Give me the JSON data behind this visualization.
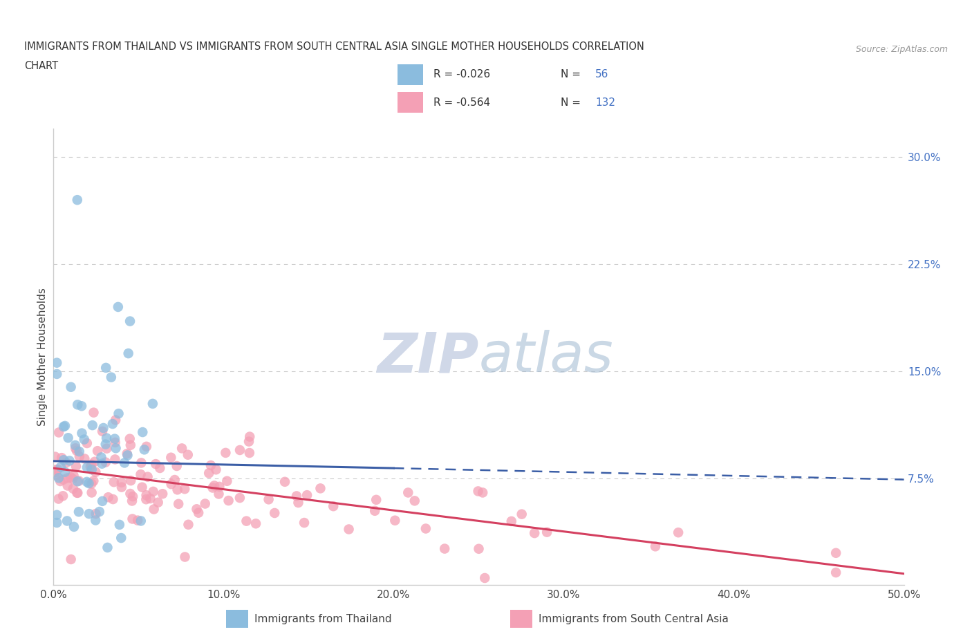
{
  "title_line1": "IMMIGRANTS FROM THAILAND VS IMMIGRANTS FROM SOUTH CENTRAL ASIA SINGLE MOTHER HOUSEHOLDS CORRELATION",
  "title_line2": "CHART",
  "source_text": "Source: ZipAtlas.com",
  "ylabel": "Single Mother Households",
  "xlim": [
    0.0,
    0.5
  ],
  "ylim": [
    0.0,
    0.32
  ],
  "xtick_vals": [
    0.0,
    0.1,
    0.2,
    0.3,
    0.4,
    0.5
  ],
  "xtick_labels": [
    "0.0%",
    "10.0%",
    "20.0%",
    "30.0%",
    "40.0%",
    "50.0%"
  ],
  "yticks_right": [
    0.075,
    0.15,
    0.225,
    0.3
  ],
  "ytick_labels_right": [
    "7.5%",
    "15.0%",
    "22.5%",
    "30.0%"
  ],
  "hlines": [
    0.075,
    0.15,
    0.225,
    0.3
  ],
  "color_thailand": "#8BBCDE",
  "color_sca": "#F4A0B5",
  "color_thailand_line": "#3B5EA6",
  "color_sca_line": "#D44060",
  "color_text_blue": "#4472C4",
  "color_N_blue": "#4472C4",
  "background_color": "#ffffff",
  "grid_color": "#cccccc",
  "watermark_color": "#d0d8e8",
  "thai_line_start_x": 0.0,
  "thai_line_start_y": 0.087,
  "thai_line_end_solid_x": 0.2,
  "thai_line_end_solid_y": 0.082,
  "thai_line_end_dash_x": 0.5,
  "thai_line_end_dash_y": 0.074,
  "sca_line_start_x": 0.0,
  "sca_line_start_y": 0.082,
  "sca_line_end_x": 0.5,
  "sca_line_end_y": 0.008
}
